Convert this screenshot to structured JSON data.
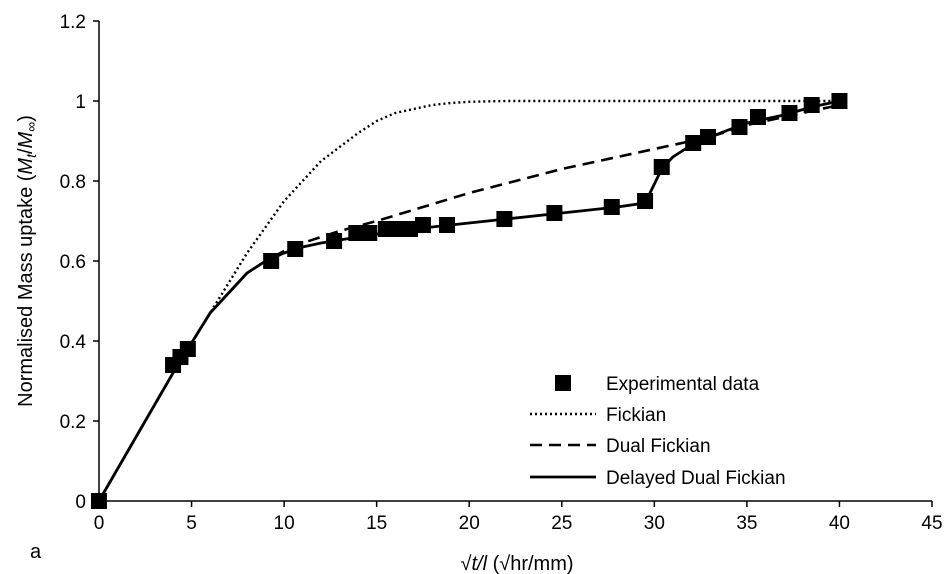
{
  "chart_data": {
    "type": "line",
    "panel_label": "a",
    "title": "",
    "xlabel": {
      "prefix": "√",
      "var": "t/l",
      "unit": " (√hr/mm)"
    },
    "ylabel": {
      "prefix": "Normalised Mass uptake (",
      "var": "M",
      "sub1": "t",
      "slash": "/",
      "var2": "M",
      "sub2": "∞",
      "suffix": ")"
    },
    "xlim": [
      0,
      45
    ],
    "ylim": [
      0,
      1.2
    ],
    "xticks": [
      "0",
      "5",
      "10",
      "15",
      "20",
      "25",
      "30",
      "35",
      "40",
      "45"
    ],
    "yticks": [
      "0",
      "0.2",
      "0.4",
      "0.6",
      "0.8",
      "1",
      "1.2"
    ],
    "legend_position": "bottom-right",
    "series": [
      {
        "name": "Experimental data",
        "kind": "marker",
        "color": "#000000",
        "x": [
          0,
          4.0,
          4.4,
          4.8,
          9.3,
          10.6,
          12.7,
          13.9,
          14.6,
          15.5,
          16.2,
          16.8,
          17.5,
          18.8,
          21.9,
          24.6,
          27.7,
          29.5,
          30.4,
          32.1,
          32.9,
          34.6,
          35.6,
          37.3,
          38.5,
          40.0
        ],
        "y": [
          0,
          0.34,
          0.36,
          0.38,
          0.6,
          0.63,
          0.65,
          0.67,
          0.67,
          0.68,
          0.68,
          0.68,
          0.69,
          0.69,
          0.705,
          0.72,
          0.735,
          0.75,
          0.835,
          0.895,
          0.91,
          0.935,
          0.96,
          0.97,
          0.99,
          1.0
        ]
      },
      {
        "name": "Fickian",
        "kind": "dotted",
        "color": "#000000",
        "x": [
          0,
          2,
          4,
          6,
          8,
          10,
          12,
          14,
          15,
          16,
          17,
          18,
          19,
          20,
          22,
          25,
          30,
          35,
          40
        ],
        "y": [
          0,
          0.16,
          0.32,
          0.47,
          0.62,
          0.75,
          0.85,
          0.92,
          0.95,
          0.97,
          0.98,
          0.99,
          0.995,
          0.998,
          1.0,
          1.0,
          1.0,
          1.0,
          1.0
        ]
      },
      {
        "name": "Dual Fickian",
        "kind": "dashed",
        "color": "#000000",
        "x": [
          0,
          2,
          4,
          6,
          8,
          9,
          10,
          11,
          12,
          13,
          15,
          20,
          25,
          30,
          33,
          35,
          38,
          40
        ],
        "y": [
          0,
          0.16,
          0.32,
          0.47,
          0.57,
          0.6,
          0.625,
          0.645,
          0.66,
          0.675,
          0.7,
          0.77,
          0.83,
          0.88,
          0.91,
          0.94,
          0.97,
          0.99
        ]
      },
      {
        "name": "Delayed Dual Fickian",
        "kind": "solid",
        "color": "#000000",
        "x": [
          0,
          2,
          4,
          6,
          8,
          9,
          10,
          11,
          12,
          14,
          16,
          18,
          20,
          22,
          25,
          28,
          29.5,
          30.4,
          31,
          32,
          33,
          35,
          37,
          38.5,
          40
        ],
        "y": [
          0,
          0.16,
          0.32,
          0.47,
          0.57,
          0.6,
          0.62,
          0.635,
          0.645,
          0.66,
          0.675,
          0.685,
          0.695,
          0.705,
          0.72,
          0.735,
          0.745,
          0.83,
          0.86,
          0.89,
          0.91,
          0.945,
          0.965,
          0.985,
          1.0
        ]
      }
    ]
  }
}
